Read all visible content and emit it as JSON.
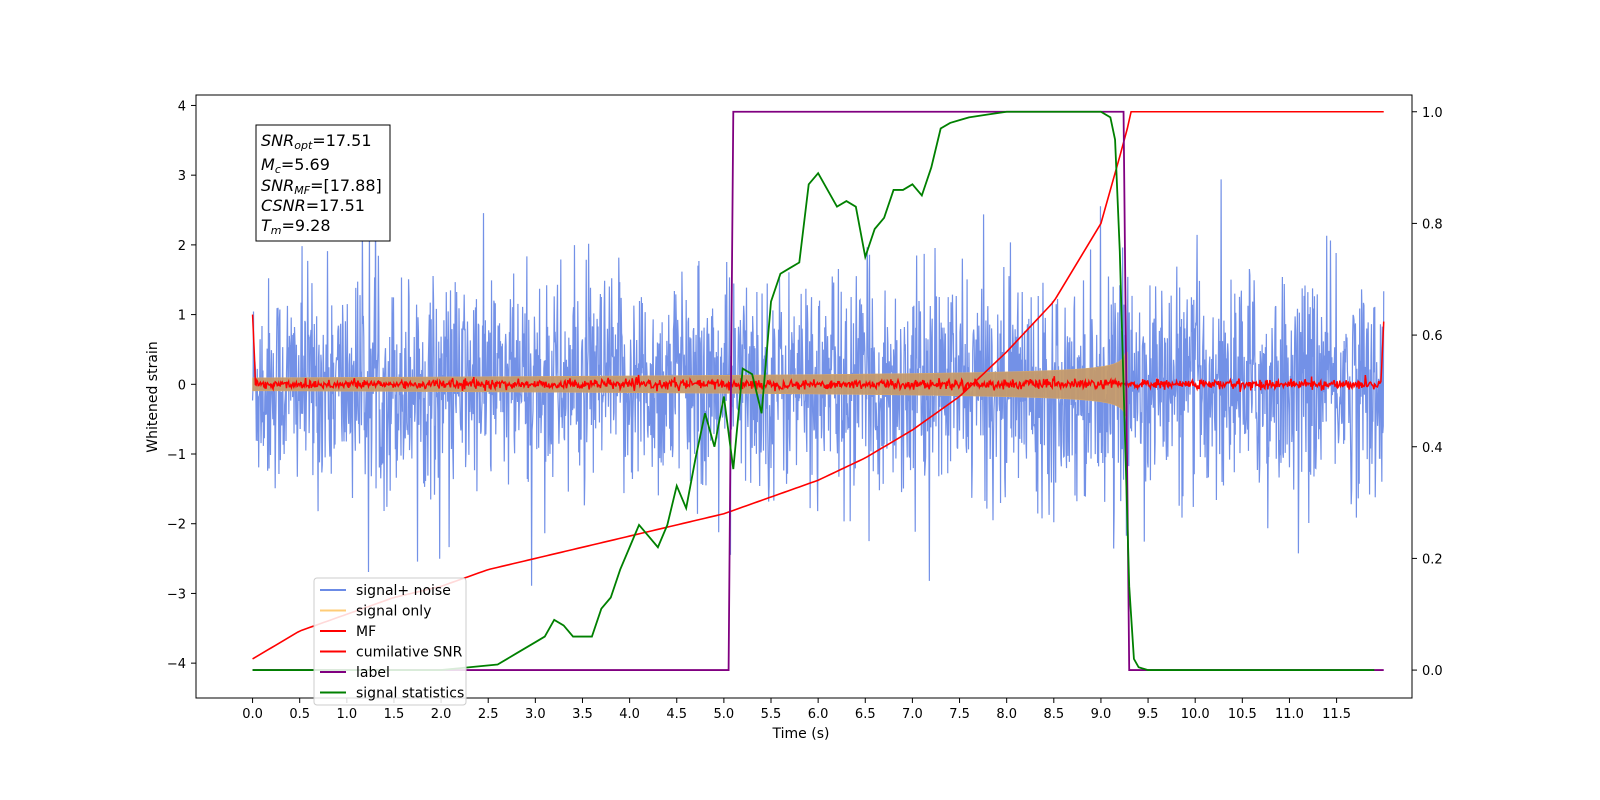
{
  "chart_data": {
    "type": "line",
    "title": "",
    "xlabel": "Time (s)",
    "ylabel": "Whitened strain",
    "xlim": [
      -0.6,
      12.3
    ],
    "ylim": [
      -4.5,
      4.15
    ],
    "ylim_right": [
      -0.05,
      1.03
    ],
    "x_ticks": [
      "0.0",
      "0.5",
      "1.0",
      "1.5",
      "2.0",
      "2.5",
      "3.0",
      "3.5",
      "4.0",
      "4.5",
      "5.0",
      "5.5",
      "6.0",
      "6.5",
      "7.0",
      "7.5",
      "8.0",
      "8.5",
      "9.0",
      "9.5",
      "10.0",
      "10.5",
      "11.0",
      "11.5"
    ],
    "y_ticks": [
      "4",
      "3",
      "2",
      "1",
      "0",
      "−1",
      "−2",
      "−3",
      "−4"
    ],
    "y_right_ticks": [
      "1.0",
      "0.8",
      "0.6",
      "0.4",
      "0.2",
      "0.0"
    ],
    "grid": false,
    "legend_position": "lower-left",
    "info_box": {
      "snr_opt": {
        "name": "SNR",
        "sub": "opt",
        "value": "=17.51"
      },
      "mc": {
        "name": "M",
        "sub": "c",
        "value": "=5.69"
      },
      "snr_mf": {
        "name": "SNR",
        "sub": "MF",
        "value": "=[17.88]"
      },
      "csnr": {
        "name": "CSNR",
        "sub": "",
        "value": "=17.51"
      },
      "tm": {
        "name": "T",
        "sub": "m",
        "value": "=9.28"
      }
    },
    "series": [
      {
        "name": "signal+ noise",
        "color": "#6b8be6",
        "axis": "left",
        "noise_std": 0.75,
        "x_range": [
          0,
          12
        ]
      },
      {
        "name": "signal only",
        "color": "#ffcc77",
        "axis": "left",
        "chirp_end": 9.28,
        "max_amplitude": 1.3
      },
      {
        "name": "MF",
        "color": "#ff0000",
        "axis": "left",
        "approx": "≈0 with spikes to ±1.0 at edges"
      },
      {
        "name": "cumilative SNR",
        "color": "#ff0000",
        "axis": "right",
        "x": [
          0,
          0.5,
          1,
          1.5,
          2,
          2.5,
          3,
          3.5,
          4,
          4.5,
          5,
          5.5,
          6,
          6.5,
          7,
          7.5,
          8,
          8.5,
          9,
          9.2,
          9.28,
          9.3,
          12
        ],
        "y": [
          0.02,
          0.07,
          0.1,
          0.13,
          0.15,
          0.18,
          0.2,
          0.22,
          0.24,
          0.26,
          0.28,
          0.31,
          0.34,
          0.38,
          0.43,
          0.49,
          0.57,
          0.66,
          0.8,
          0.92,
          0.97,
          1.0,
          1.0
        ]
      },
      {
        "name": "label",
        "color": "#800080",
        "axis": "right",
        "x": [
          0,
          5.05,
          5.1,
          9.24,
          9.3,
          12
        ],
        "y": [
          0,
          0,
          1,
          1,
          0,
          0
        ]
      },
      {
        "name": "signal statistics",
        "color": "#008000",
        "axis": "right",
        "x": [
          0,
          0.5,
          1,
          1.5,
          2,
          2.3,
          2.6,
          2.8,
          3.0,
          3.1,
          3.2,
          3.3,
          3.4,
          3.5,
          3.6,
          3.7,
          3.8,
          3.9,
          4.0,
          4.1,
          4.2,
          4.3,
          4.4,
          4.5,
          4.6,
          4.7,
          4.8,
          4.9,
          5.0,
          5.1,
          5.2,
          5.3,
          5.4,
          5.5,
          5.6,
          5.7,
          5.8,
          5.9,
          6.0,
          6.1,
          6.2,
          6.3,
          6.4,
          6.5,
          6.6,
          6.7,
          6.8,
          6.9,
          7.0,
          7.1,
          7.2,
          7.3,
          7.4,
          7.5,
          7.6,
          7.8,
          8.0,
          8.5,
          9.0,
          9.1,
          9.15,
          9.2,
          9.25,
          9.3,
          9.35,
          9.4,
          9.5,
          11.9
        ],
        "y": [
          0.0,
          0.0,
          0.0,
          0.0,
          0.0,
          0.005,
          0.01,
          0.03,
          0.05,
          0.06,
          0.09,
          0.08,
          0.06,
          0.06,
          0.06,
          0.11,
          0.13,
          0.18,
          0.22,
          0.26,
          0.24,
          0.22,
          0.26,
          0.33,
          0.29,
          0.38,
          0.46,
          0.4,
          0.49,
          0.36,
          0.54,
          0.53,
          0.46,
          0.66,
          0.71,
          0.72,
          0.73,
          0.87,
          0.89,
          0.86,
          0.83,
          0.84,
          0.83,
          0.74,
          0.79,
          0.81,
          0.86,
          0.86,
          0.87,
          0.85,
          0.9,
          0.97,
          0.98,
          0.985,
          0.99,
          0.995,
          1.0,
          1.0,
          1.0,
          0.99,
          0.95,
          0.75,
          0.45,
          0.15,
          0.02,
          0.005,
          0.0,
          0.0
        ]
      }
    ]
  }
}
